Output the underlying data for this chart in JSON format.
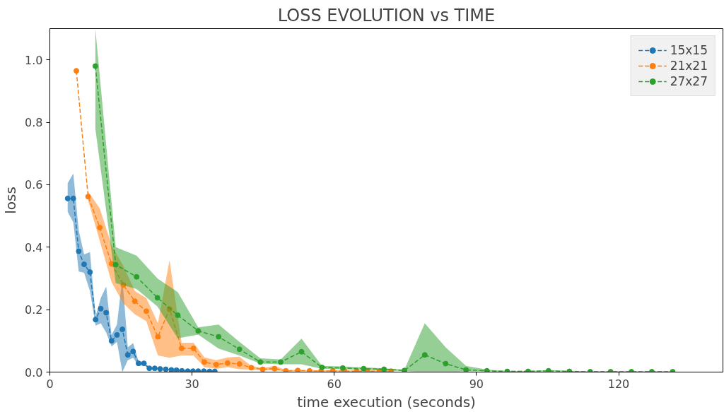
{
  "chart_data": {
    "type": "line",
    "title": "LOSS EVOLUTION vs TIME",
    "xlabel": "time execution (seconds)",
    "ylabel": "loss",
    "xlim": [
      0,
      142
    ],
    "ylim": [
      0,
      1.1
    ],
    "xticks": [
      0,
      30,
      60,
      90,
      120
    ],
    "yticks": [
      {
        "value": 0,
        "label": "0.0"
      },
      0.2,
      0.4,
      0.6,
      0.8,
      {
        "value": 1,
        "label": "1.0"
      }
    ],
    "grid": false,
    "legend": "top right",
    "marker": "circle",
    "line_style": "dashed",
    "series": [
      {
        "name": "15x15",
        "color": "#1f77b4",
        "x": [
          3.76,
          4.95,
          6.09,
          7.23,
          8.47,
          9.65,
          10.74,
          11.88,
          13.02,
          14.16,
          15.3,
          16.44,
          17.57,
          18.71,
          19.85,
          20.99,
          22.13,
          23.27,
          24.46,
          25.64,
          26.73,
          27.87,
          29.1,
          30.2,
          31.3,
          32.5,
          33.7,
          34.8
        ],
        "values": [
          0.556,
          0.556,
          0.387,
          0.345,
          0.32,
          0.168,
          0.203,
          0.19,
          0.1,
          0.119,
          0.137,
          0.055,
          0.066,
          0.028,
          0.028,
          0.012,
          0.012,
          0.01,
          0.009,
          0.007,
          0.006,
          0.004,
          0.003,
          0.003,
          0.003,
          0.003,
          0.002,
          0.002
        ],
        "lower": [
          0.513,
          0.48,
          0.322,
          0.318,
          0.259,
          0.149,
          0.156,
          0.127,
          0.082,
          0.097,
          0.0,
          0.038,
          0.046,
          0.02,
          0.022,
          0.009,
          0.009,
          0.008,
          0.007,
          0.005,
          0.004,
          0.002,
          0.001,
          0.001,
          0.001,
          0.001,
          0.0,
          0.0
        ],
        "upper": [
          0.605,
          0.636,
          0.454,
          0.377,
          0.384,
          0.178,
          0.237,
          0.274,
          0.119,
          0.152,
          0.303,
          0.079,
          0.093,
          0.035,
          0.032,
          0.015,
          0.015,
          0.012,
          0.011,
          0.009,
          0.008,
          0.006,
          0.005,
          0.005,
          0.005,
          0.005,
          0.004,
          0.004
        ]
      },
      {
        "name": "21x21",
        "color": "#ff7f0e",
        "x": [
          5.59,
          8.07,
          10.54,
          13.02,
          15.5,
          17.92,
          20.35,
          22.8,
          25.25,
          27.8,
          30.3,
          32.6,
          35.1,
          37.5,
          40.0,
          42.5,
          44.9,
          47.4,
          49.8,
          52.3,
          54.8,
          57.2,
          59.7,
          62.2,
          64.7,
          67.0,
          69.5,
          72.0
        ],
        "values": [
          0.965,
          0.562,
          0.463,
          0.347,
          0.279,
          0.227,
          0.195,
          0.113,
          0.202,
          0.076,
          0.076,
          0.032,
          0.024,
          0.029,
          0.026,
          0.014,
          0.009,
          0.011,
          0.004,
          0.005,
          0.004,
          0.003,
          0.004,
          0.003,
          0.003,
          0.003,
          0.003,
          0.003
        ],
        "lower": [
          null,
          0.55,
          0.42,
          0.288,
          0.22,
          0.185,
          0.163,
          0.053,
          0.046,
          0.053,
          0.053,
          0.016,
          0.01,
          0.016,
          0.009,
          0.008,
          0.006,
          0.005,
          0.002,
          0.003,
          0.002,
          0.001,
          0.002,
          0.001,
          0.001,
          0.001,
          0.001,
          0.001
        ],
        "upper": [
          null,
          0.579,
          0.524,
          0.406,
          0.34,
          0.26,
          0.237,
          0.156,
          0.358,
          0.094,
          0.094,
          0.047,
          0.038,
          0.047,
          0.049,
          0.02,
          0.013,
          0.02,
          0.007,
          0.007,
          0.006,
          0.005,
          0.006,
          0.005,
          0.005,
          0.005,
          0.005,
          0.005
        ]
      },
      {
        "name": "27x27",
        "color": "#2ca02c",
        "x": [
          9.6,
          13.9,
          18.3,
          22.7,
          27.0,
          31.3,
          35.6,
          40.0,
          44.4,
          48.7,
          53.1,
          57.4,
          61.8,
          66.2,
          70.5,
          74.8,
          79.1,
          83.5,
          87.8,
          92.2,
          96.5,
          100.9,
          105.2,
          109.6,
          114.0,
          118.3,
          122.7,
          127.0,
          131.4
        ],
        "values": [
          0.98,
          0.344,
          0.305,
          0.238,
          0.182,
          0.132,
          0.113,
          0.073,
          0.032,
          0.032,
          0.065,
          0.015,
          0.013,
          0.011,
          0.009,
          0.005,
          0.055,
          0.027,
          0.007,
          0.004,
          0.002,
          0.002,
          0.004,
          0.002,
          0.001,
          0.001,
          0.001,
          0.001,
          0.001
        ],
        "lower": [
          0.78,
          0.285,
          0.266,
          0.21,
          0.108,
          0.12,
          0.075,
          0.053,
          0.027,
          0.025,
          0.025,
          0.01,
          0.009,
          0.007,
          0.006,
          0.003,
          0.0,
          0.0,
          0.002,
          0.002,
          0.001,
          0.001,
          0.002,
          0.001,
          0.0,
          0.0,
          0.0,
          0.0,
          0.0
        ],
        "upper": [
          1.1,
          0.4,
          0.373,
          0.3,
          0.256,
          0.143,
          0.152,
          0.097,
          0.044,
          0.04,
          0.107,
          0.02,
          0.018,
          0.015,
          0.012,
          0.008,
          0.156,
          0.079,
          0.02,
          0.008,
          0.004,
          0.004,
          0.006,
          0.004,
          0.003,
          0.003,
          0.003,
          0.003,
          0.003
        ]
      }
    ]
  }
}
